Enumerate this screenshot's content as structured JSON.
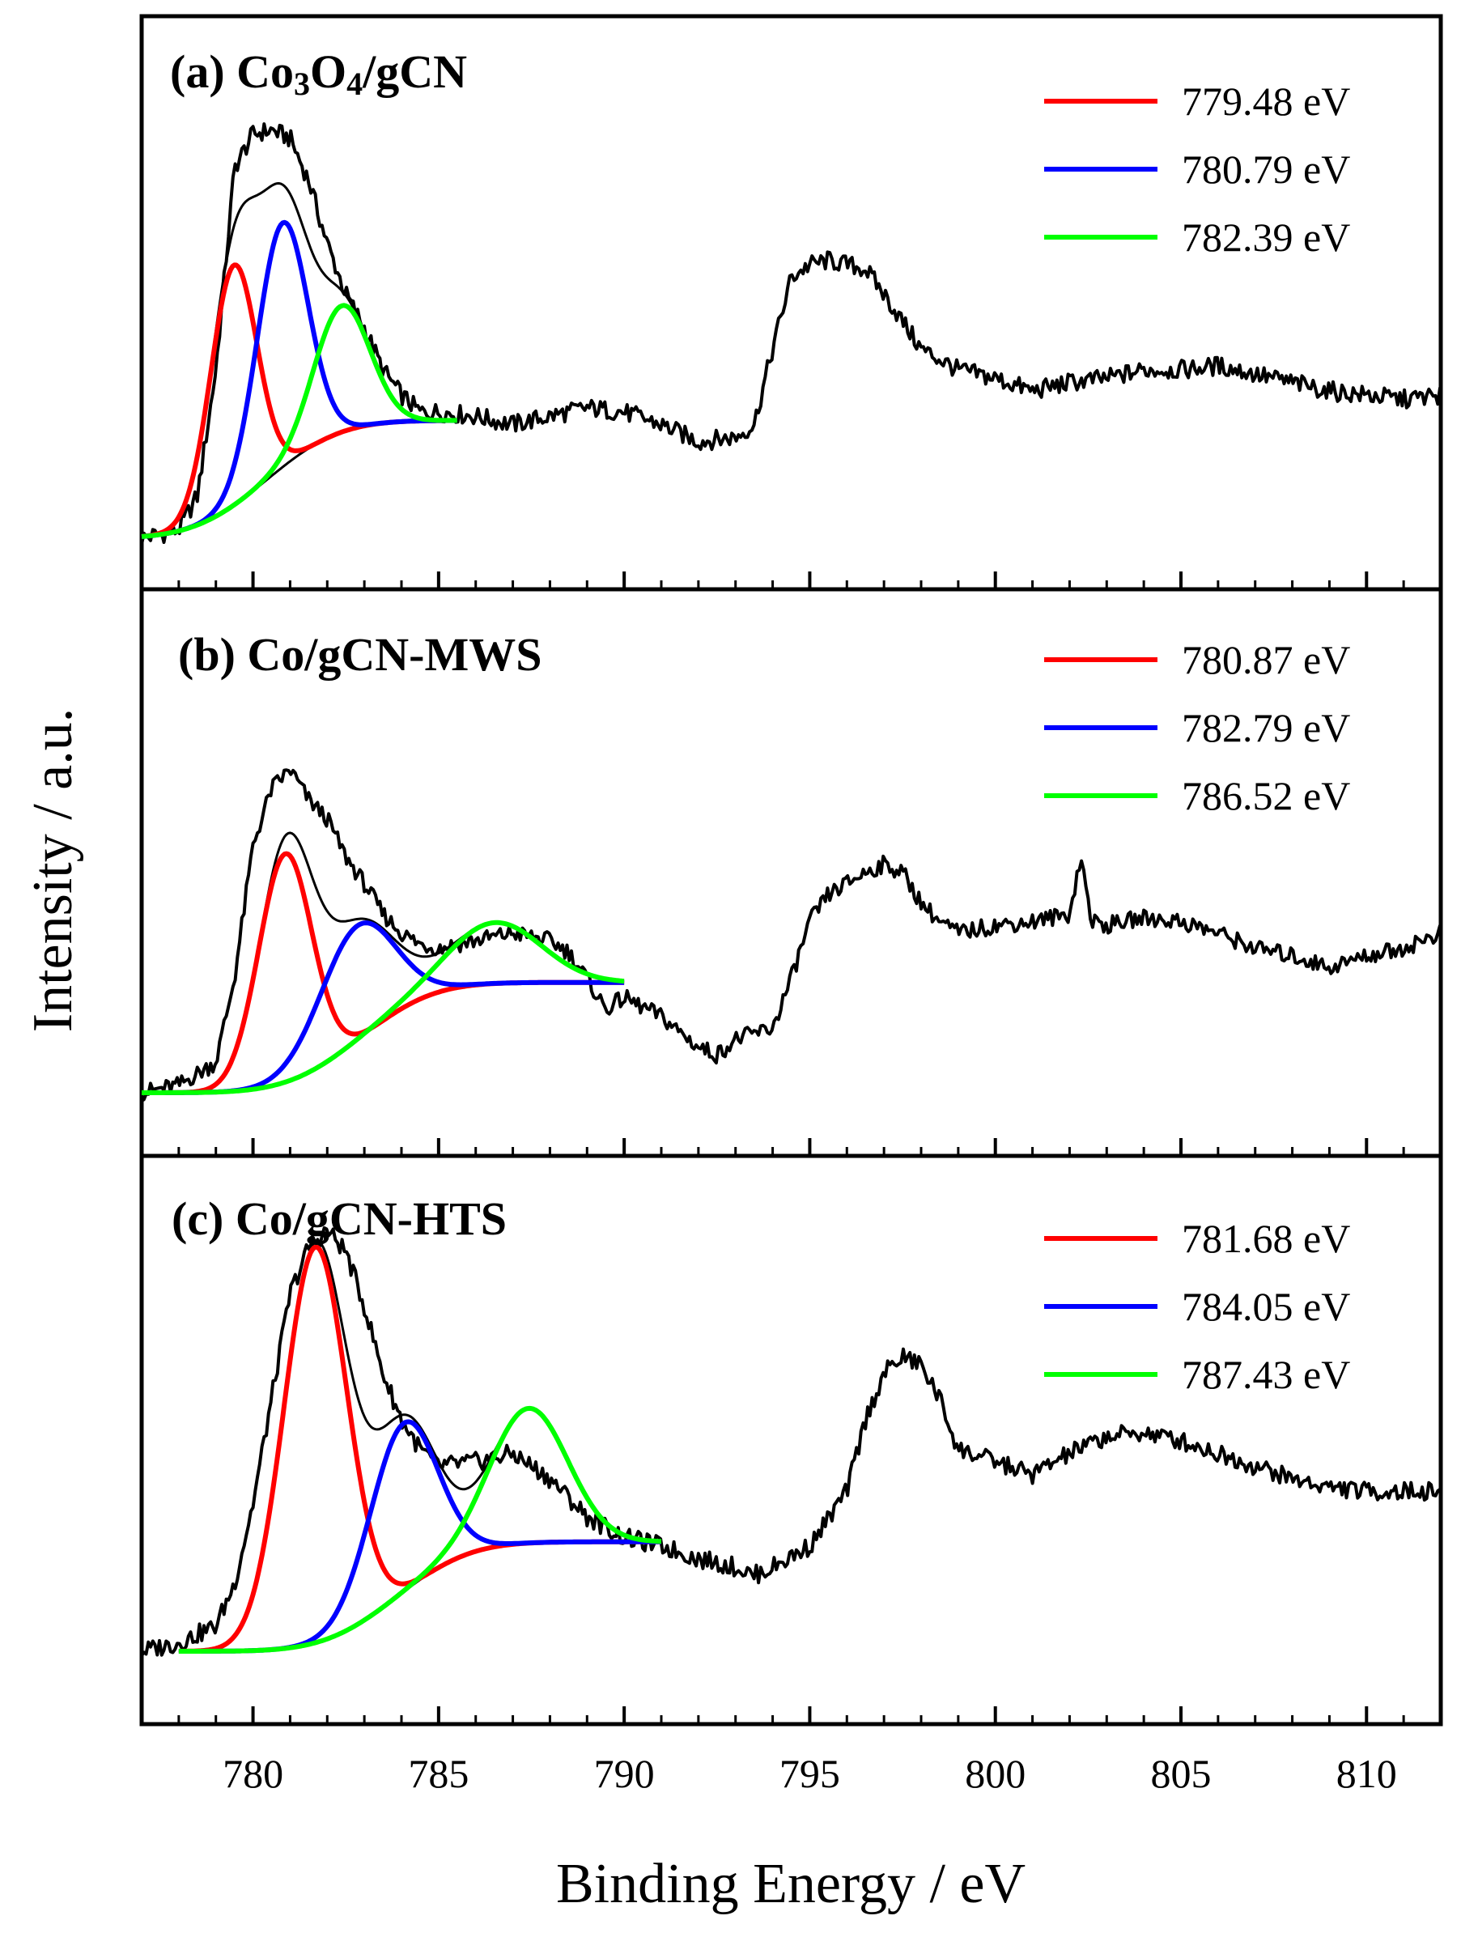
{
  "chart_data": {
    "type": "line",
    "xlabel": "Binding Energy / eV",
    "ylabel": "Intensity / a.u.",
    "xlim": [
      777,
      812
    ],
    "xticks": [
      780,
      785,
      790,
      795,
      800,
      805,
      810
    ],
    "grid": false,
    "legend_position": "top-right",
    "colors": {
      "red": "#ff0000",
      "blue": "#0000ff",
      "green": "#00ff00",
      "black": "#000000"
    },
    "panels": [
      {
        "title_prefix": "(a) Co",
        "title_sub1": "3",
        "title_mid": "O",
        "title_sub2": "4",
        "title_suffix": "/gCN",
        "raw_spectrum": {
          "x": [
            777,
            778,
            778.5,
            779,
            779.5,
            780,
            780.5,
            781,
            781.5,
            782,
            782.5,
            783,
            783.5,
            784,
            784.5,
            785,
            786,
            787,
            788,
            789,
            790,
            791,
            792,
            793,
            793.5,
            794,
            794.5,
            795,
            795.5,
            796,
            796.5,
            797,
            798,
            799,
            800,
            801,
            802,
            803,
            804,
            805,
            806,
            807,
            808,
            809,
            810,
            811,
            812
          ],
          "y": [
            0.0,
            0.02,
            0.1,
            0.4,
            0.88,
            0.96,
            0.97,
            0.95,
            0.85,
            0.7,
            0.58,
            0.5,
            0.4,
            0.34,
            0.3,
            0.3,
            0.29,
            0.27,
            0.29,
            0.31,
            0.3,
            0.27,
            0.23,
            0.24,
            0.27,
            0.45,
            0.62,
            0.65,
            0.66,
            0.65,
            0.64,
            0.58,
            0.45,
            0.4,
            0.38,
            0.35,
            0.37,
            0.38,
            0.4,
            0.4,
            0.41,
            0.39,
            0.37,
            0.35,
            0.34,
            0.33,
            0.34
          ]
        },
        "fit_range": [
          777,
          785.5
        ],
        "background_limits": [
          0.0,
          0.28
        ],
        "peaks": [
          {
            "label": "779.48 eV",
            "center": 779.48,
            "color": "red",
            "height": 0.57,
            "sigma": 0.62
          },
          {
            "label": "780.79 eV",
            "center": 780.79,
            "color": "blue",
            "height": 0.58,
            "sigma": 0.68
          },
          {
            "label": "782.39 eV",
            "center": 782.39,
            "color": "green",
            "height": 0.3,
            "sigma": 0.75
          }
        ]
      },
      {
        "title": "(b) Co/gCN-MWS",
        "raw_spectrum": {
          "x": [
            777,
            778,
            779,
            779.5,
            780,
            780.5,
            781,
            781.5,
            782,
            782.5,
            783,
            783.5,
            784,
            784.5,
            785,
            786,
            787,
            788,
            788.5,
            789,
            789.5,
            790,
            791,
            792,
            792.5,
            793,
            794,
            794.5,
            795,
            795.5,
            796,
            796.5,
            797,
            797.5,
            798,
            798.5,
            799,
            800,
            801,
            802,
            802.3,
            802.6,
            803,
            804,
            805,
            806,
            807,
            808,
            809,
            810,
            811,
            812
          ],
          "y": [
            0.0,
            0.02,
            0.08,
            0.3,
            0.65,
            0.8,
            0.85,
            0.77,
            0.72,
            0.62,
            0.55,
            0.47,
            0.42,
            0.39,
            0.38,
            0.4,
            0.42,
            0.4,
            0.37,
            0.3,
            0.22,
            0.25,
            0.2,
            0.12,
            0.1,
            0.14,
            0.17,
            0.3,
            0.45,
            0.52,
            0.55,
            0.58,
            0.6,
            0.58,
            0.5,
            0.45,
            0.42,
            0.44,
            0.45,
            0.47,
            0.62,
            0.45,
            0.44,
            0.46,
            0.45,
            0.42,
            0.38,
            0.36,
            0.33,
            0.36,
            0.38,
            0.42
          ]
        },
        "fit_range": [
          777,
          790
        ],
        "background_limits": [
          0.0,
          0.29
        ],
        "peaks": [
          {
            "label": "780.87 eV",
            "center": 780.87,
            "color": "red",
            "height": 0.6,
            "sigma": 0.72
          },
          {
            "label": "782.79 eV",
            "center": 782.79,
            "color": "blue",
            "height": 0.3,
            "sigma": 1.0
          },
          {
            "label": "786.52 eV",
            "center": 786.52,
            "color": "green",
            "height": 0.16,
            "sigma": 1.25
          }
        ]
      },
      {
        "title": "(c) Co/gCN-HTS",
        "raw_spectrum": {
          "x": [
            777,
            778,
            779,
            779.5,
            780,
            780.5,
            781,
            781.5,
            782,
            782.5,
            783,
            783.5,
            784,
            784.5,
            785,
            786,
            787,
            788,
            789,
            790,
            791,
            792,
            793,
            793.5,
            794,
            795,
            796,
            796.5,
            797,
            797.5,
            798,
            798.5,
            799,
            800,
            801,
            802,
            803,
            804,
            805,
            806,
            807,
            808,
            809,
            810,
            811,
            812
          ],
          "y": [
            0.0,
            0.02,
            0.06,
            0.16,
            0.35,
            0.6,
            0.85,
            0.96,
            1.0,
            0.95,
            0.82,
            0.66,
            0.55,
            0.48,
            0.44,
            0.45,
            0.47,
            0.41,
            0.32,
            0.27,
            0.25,
            0.22,
            0.2,
            0.18,
            0.2,
            0.25,
            0.38,
            0.55,
            0.66,
            0.7,
            0.68,
            0.6,
            0.48,
            0.45,
            0.42,
            0.47,
            0.51,
            0.52,
            0.5,
            0.47,
            0.44,
            0.41,
            0.39,
            0.38,
            0.38,
            0.38
          ]
        },
        "fit_range": [
          778,
          791
        ],
        "background_limits": [
          0.0,
          0.26
        ],
        "peaks": [
          {
            "label": "781.68 eV",
            "center": 781.68,
            "color": "red",
            "height": 0.94,
            "sigma": 0.85
          },
          {
            "label": "784.05 eV",
            "center": 784.05,
            "color": "blue",
            "height": 0.4,
            "sigma": 0.9
          },
          {
            "label": "787.43 eV",
            "center": 787.43,
            "color": "green",
            "height": 0.32,
            "sigma": 1.05
          }
        ]
      }
    ]
  }
}
